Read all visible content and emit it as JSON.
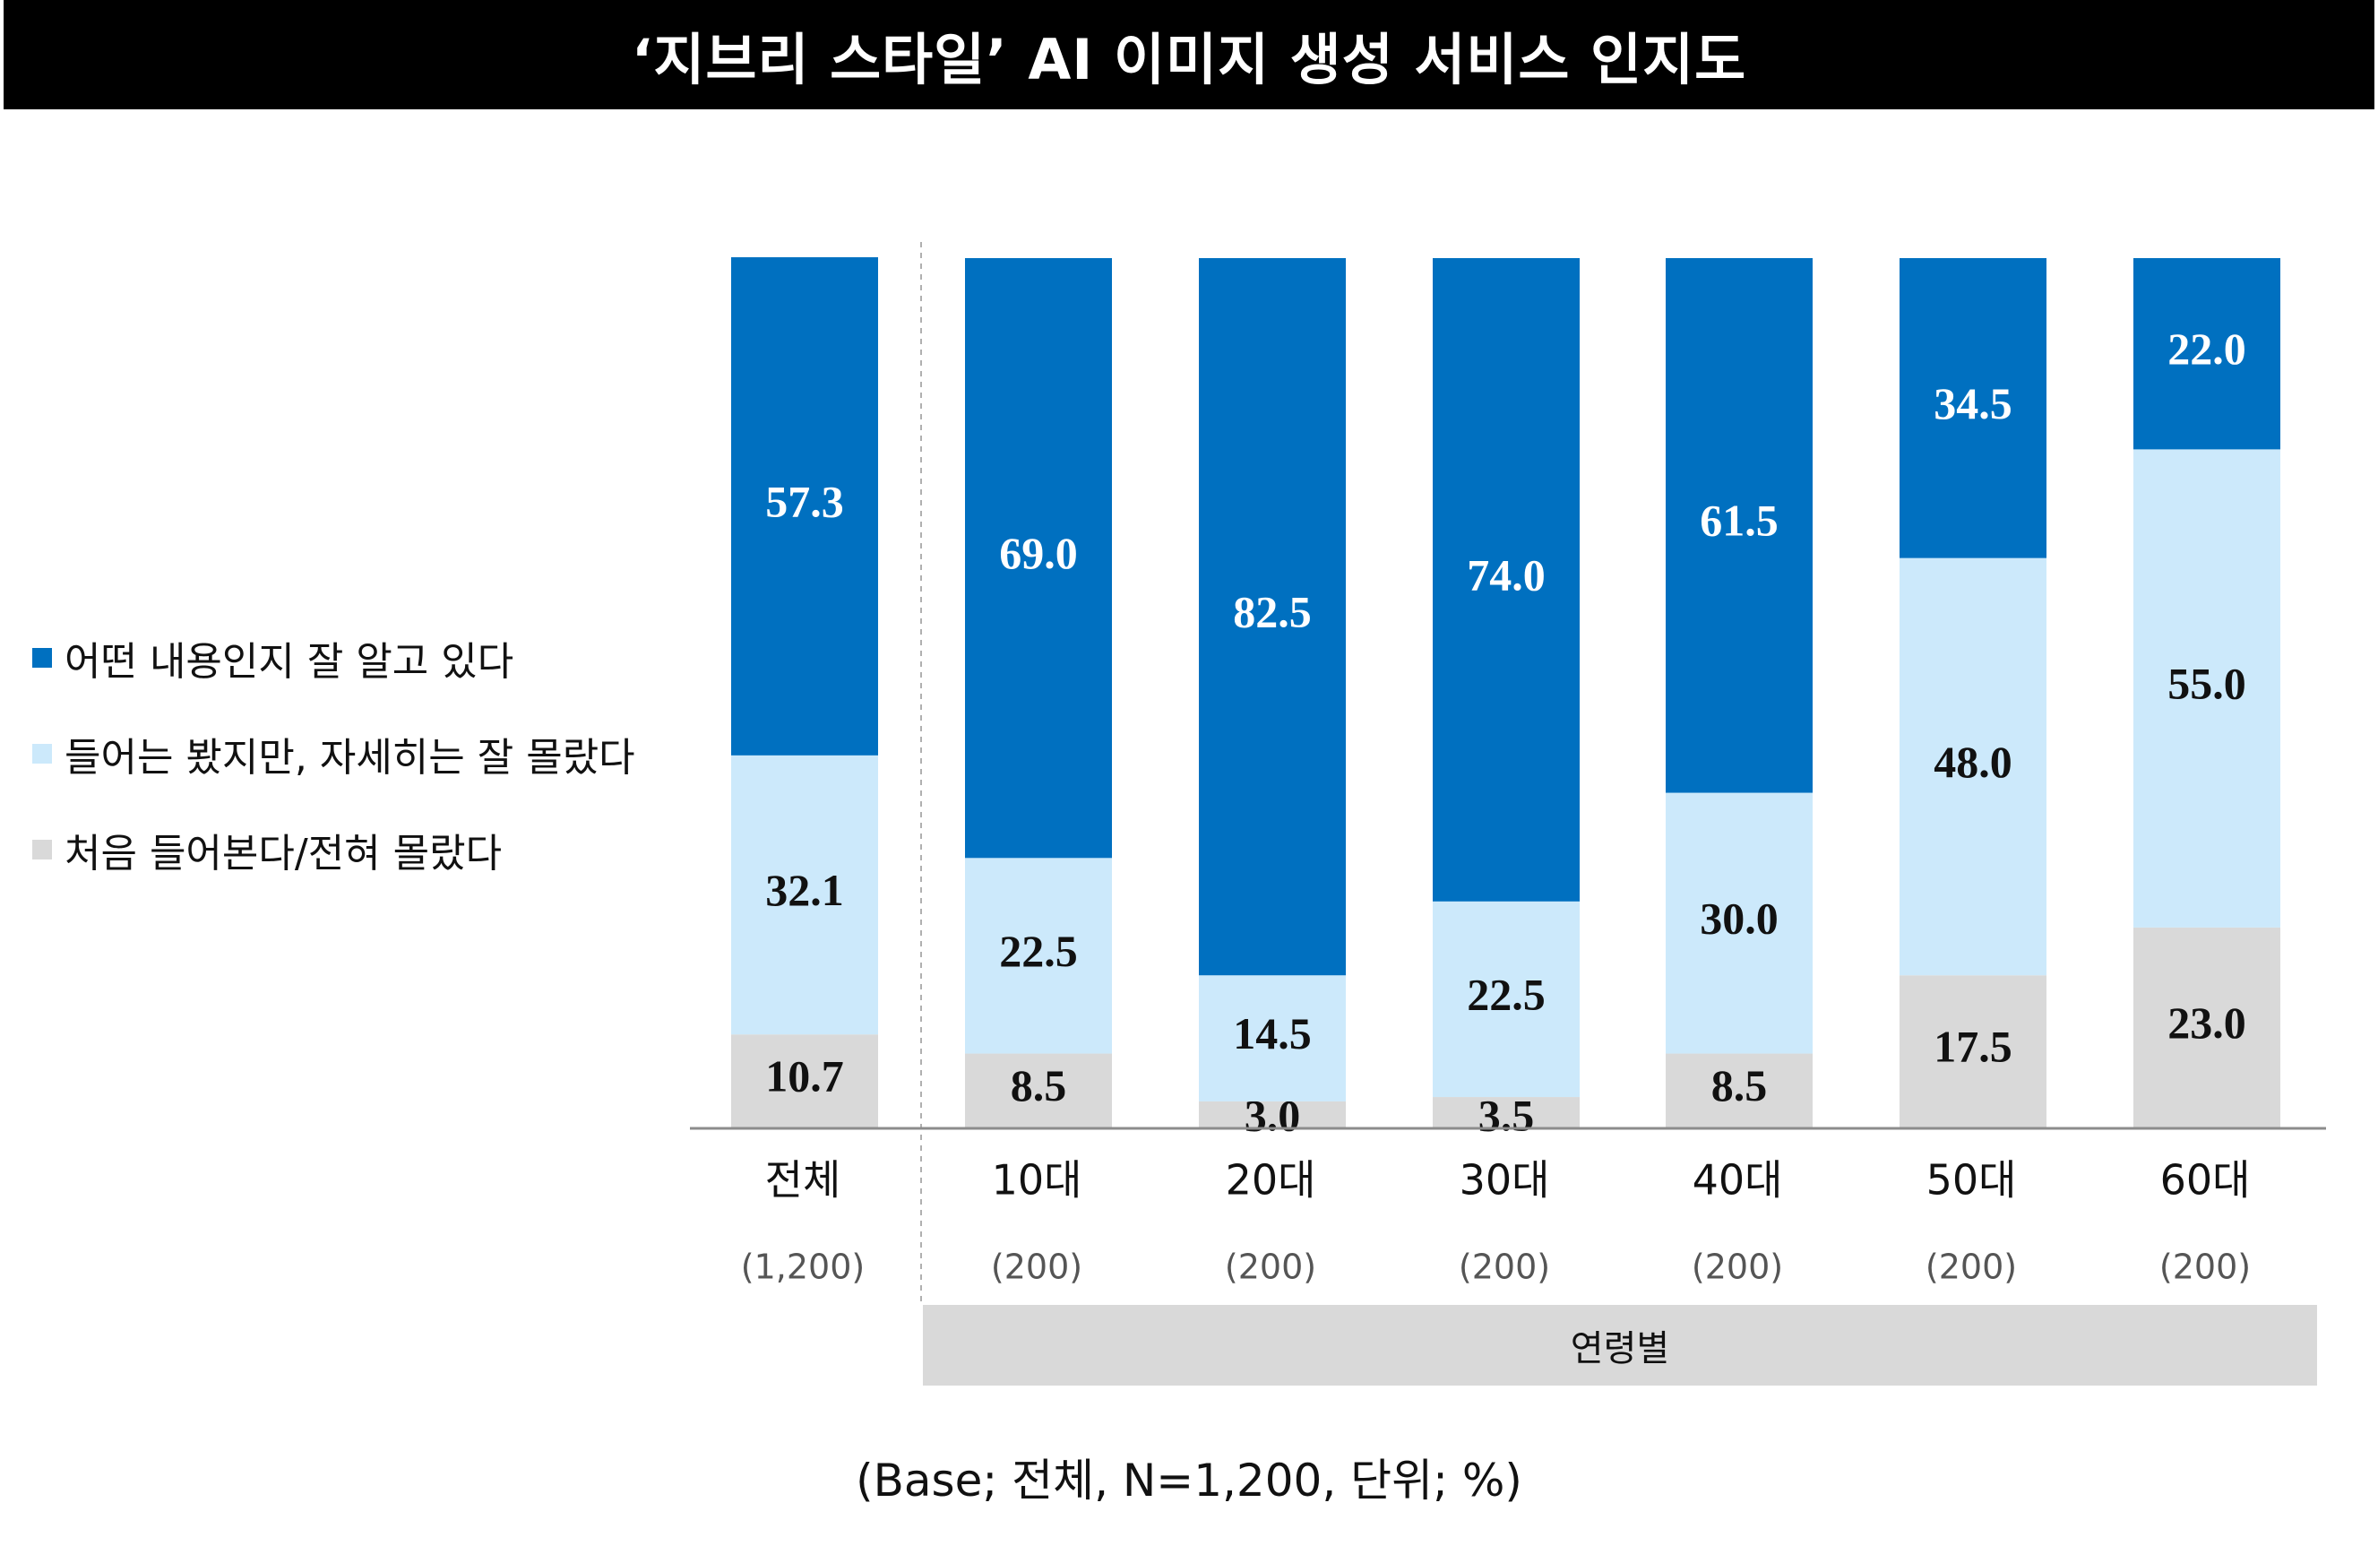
{
  "header": {
    "title": "‘지브리 스타일’ AI 이미지 생성 서비스 인지도"
  },
  "legend": [
    {
      "label": "어떤 내용인지 잘 알고 있다",
      "color": "#0070c0"
    },
    {
      "label": "들어는 봤지만, 자세히는 잘 몰랐다",
      "color": "#cce9fb"
    },
    {
      "label": "처음 들어본다/전혀 몰랐다",
      "color": "#d9d9d9"
    }
  ],
  "group": {
    "label": "연령별"
  },
  "base_note": "(Base; 전체, N=1,200, 단위; %)",
  "chart_data": {
    "type": "bar",
    "stacked": true,
    "categories": [
      "전체",
      "10대",
      "20대",
      "30대",
      "40대",
      "50대",
      "60대"
    ],
    "sample_sizes": [
      "(1,200)",
      "(200)",
      "(200)",
      "(200)",
      "(200)",
      "(200)",
      "(200)"
    ],
    "series": [
      {
        "name": "처음 들어본다/전혀 몰랐다",
        "color": "#d9d9d9",
        "label_color": "#111111",
        "values": [
          10.7,
          8.5,
          3.0,
          3.5,
          8.5,
          17.5,
          23.0
        ],
        "labels": [
          "10.7",
          "8.5",
          "3.0",
          "3.5",
          "8.5",
          "17.5",
          "23.0"
        ]
      },
      {
        "name": "들어는 봤지만, 자세히는 잘 몰랐다",
        "color": "#cce9fb",
        "label_color": "#111111",
        "values": [
          32.1,
          22.5,
          14.5,
          22.5,
          30.0,
          48.0,
          55.0
        ],
        "labels": [
          "32.1",
          "22.5",
          "14.5",
          "22.5",
          "30.0",
          "48.0",
          "55.0"
        ]
      },
      {
        "name": "어떤 내용인지 잘 알고 있다",
        "color": "#0070c0",
        "label_color": "#ffffff",
        "values": [
          57.3,
          69.0,
          82.5,
          74.0,
          61.5,
          34.5,
          22.0
        ],
        "labels": [
          "57.3",
          "69.0",
          "82.5",
          "74.0",
          "61.5",
          "34.5",
          "22.0"
        ]
      }
    ],
    "ylim": [
      0,
      100
    ],
    "legend_position": "left",
    "grid": false
  }
}
